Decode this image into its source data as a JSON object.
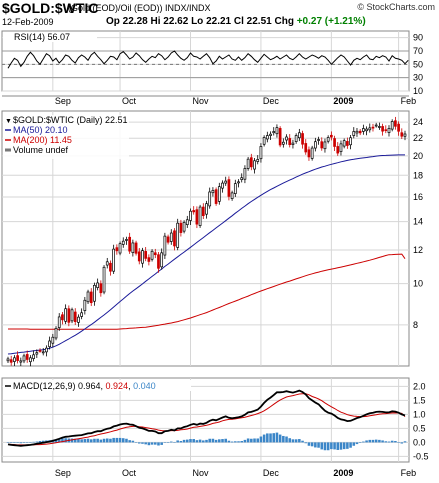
{
  "header": {
    "symbol": "$GOLD:$WTIC",
    "subtitle": "(Gold (EOD)/Oil (EOD))  INDX/INDX",
    "brand": "© StockCharts.com",
    "date": "12-Feb-2009",
    "ohlc": {
      "op_label": "Op",
      "op": "22.28",
      "hi_label": "Hi",
      "hi": "22.62",
      "lo_label": "Lo",
      "lo": "22.21",
      "cl_label": "Cl",
      "cl": "22.51",
      "chg_label": "Chg",
      "chg": "+0.27 (+1.21%)"
    }
  },
  "colors": {
    "price": "#000000",
    "down_candle": "#cc0000",
    "ma50": "#1a1a99",
    "ma200": "#cc0000",
    "macd_line": "#000000",
    "signal_line": "#cc0000",
    "histogram": "#3b86c8",
    "grid": "#d6d6d6",
    "rsi_band": "#9a9a9a",
    "rsi_line": "#000000"
  },
  "chart_data": [
    {
      "type": "line",
      "panel": "rsi",
      "legend": {
        "label": "RSI(14)",
        "value": "56.07"
      },
      "ylim": [
        10,
        100
      ],
      "yticks": [
        90,
        70,
        50,
        30,
        10
      ],
      "bands": [
        70,
        30
      ],
      "midline": 50,
      "series": [
        {
          "name": "RSI(14)",
          "values": [
            44,
            52,
            59,
            56,
            47,
            53,
            62,
            68,
            63,
            55,
            50,
            58,
            66,
            63,
            55,
            59,
            52,
            57,
            64,
            62,
            56,
            52,
            60,
            64,
            61,
            56,
            64,
            68,
            62,
            57,
            51,
            56,
            62,
            61,
            57,
            66,
            69,
            64,
            58,
            61,
            67,
            63,
            57,
            53,
            58,
            62,
            60,
            66,
            63,
            57,
            61,
            67,
            70,
            64,
            59,
            56,
            60,
            67,
            62,
            61,
            58,
            62,
            66,
            60,
            51,
            55,
            62,
            58,
            61,
            64,
            58,
            56,
            61,
            56,
            60,
            66,
            62,
            57,
            53,
            59,
            65,
            61,
            57,
            59,
            62,
            58,
            61,
            64,
            59,
            57,
            61,
            66,
            61,
            58,
            61,
            64,
            62,
            59,
            63,
            61,
            56,
            50,
            55,
            60,
            64,
            61,
            55,
            49,
            56,
            59,
            57,
            61,
            64,
            58,
            57,
            62,
            60,
            63,
            61,
            55,
            63,
            59,
            58,
            56,
            51,
            56
          ]
        }
      ]
    },
    {
      "type": "candlestick",
      "panel": "price",
      "legend": [
        {
          "label": "$GOLD:$WTIC (Daily)",
          "value": "22.51"
        },
        {
          "label": "MA(50)",
          "value": "20.10"
        },
        {
          "label": "MA(200)",
          "value": "11.45"
        },
        {
          "label": "Volume undef",
          "value": ""
        }
      ],
      "scale": "log",
      "ylim": [
        6.4,
        25.5
      ],
      "yticks": [
        24,
        22,
        20,
        18,
        16,
        14,
        12,
        10,
        8
      ],
      "x_labels": [
        "Sep",
        "Oct",
        "Nov",
        "Dec",
        "2009",
        "Feb"
      ],
      "x_label_index": [
        14,
        35,
        57,
        79,
        101,
        122
      ],
      "close": [
        6.65,
        6.53,
        6.69,
        6.59,
        6.58,
        6.76,
        6.63,
        6.69,
        6.8,
        6.88,
        6.96,
        6.91,
        7.05,
        7.33,
        7.48,
        7.85,
        8.35,
        8.22,
        8.73,
        8.11,
        8.68,
        8.14,
        8.34,
        8.54,
        9.14,
        9.56,
        9.02,
        9.91,
        10.04,
        9.52,
        10.93,
        11.26,
        10.7,
        12.06,
        11.95,
        12.42,
        12.59,
        12.71,
        11.93,
        12.47,
        11.79,
        11.31,
        11.96,
        11.47,
        11.28,
        11.92,
        11.7,
        10.87,
        11.82,
        12.94,
        12.52,
        13.16,
        12.27,
        13.88,
        13.19,
        13.94,
        14.14,
        14.81,
        14.76,
        13.81,
        15.15,
        14.46,
        15.43,
        16.44,
        16.58,
        15.44,
        16.92,
        17.25,
        17.44,
        16.05,
        16.36,
        17.2,
        17.37,
        17.76,
        18.67,
        19.64,
        18.84,
        19.47,
        19.61,
        21.04,
        22.09,
        22.32,
        22.49,
        22.82,
        23.3,
        21.21,
        21.53,
        22.15,
        21.25,
        21.43,
        22.33,
        22.66,
        21.3,
        20.42,
        19.88,
        20.86,
        21.59,
        21.85,
        20.87,
        21.56,
        22.09,
        22.14,
        21.04,
        20.3,
        21.34,
        21.71,
        21.15,
        22.06,
        22.82,
        22.85,
        22.65,
        23.19,
        23.12,
        23.27,
        23.3,
        23.63,
        23.45,
        22.86,
        22.96,
        23.21,
        24.09,
        23.47,
        22.85,
        22.24,
        22.51
      ],
      "series": [
        {
          "name": "MA(50)",
          "values": [
            6.83,
            6.84,
            6.86,
            6.87,
            6.89,
            6.9,
            6.92,
            6.93,
            6.95,
            6.96,
            6.98,
            6.99,
            7.01,
            7.05,
            7.09,
            7.14,
            7.2,
            7.27,
            7.34,
            7.41,
            7.49,
            7.56,
            7.64,
            7.73,
            7.82,
            7.92,
            8.01,
            8.11,
            8.22,
            8.33,
            8.44,
            8.56,
            8.68,
            8.81,
            8.94,
            9.08,
            9.21,
            9.35,
            9.48,
            9.61,
            9.73,
            9.86,
            9.99,
            10.13,
            10.26,
            10.4,
            10.54,
            10.69,
            10.83,
            10.98,
            11.12,
            11.27,
            11.42,
            11.57,
            11.72,
            11.87,
            12.02,
            12.18,
            12.34,
            12.51,
            12.67,
            12.84,
            13.01,
            13.18,
            13.35,
            13.53,
            13.71,
            13.89,
            14.07,
            14.26,
            14.45,
            14.65,
            14.84,
            15.04,
            15.23,
            15.43,
            15.61,
            15.79,
            15.97,
            16.15,
            16.32,
            16.49,
            16.65,
            16.8,
            16.95,
            17.1,
            17.25,
            17.39,
            17.53,
            17.67,
            17.82,
            17.96,
            18.1,
            18.23,
            18.35,
            18.48,
            18.6,
            18.71,
            18.82,
            18.91,
            19.01,
            19.1,
            19.18,
            19.27,
            19.36,
            19.44,
            19.51,
            19.58,
            19.63,
            19.68,
            19.73,
            19.78,
            19.82,
            19.87,
            19.92,
            19.97,
            20.01,
            20.03,
            20.05,
            20.07,
            20.08,
            20.09,
            20.1,
            20.1,
            20.1
          ]
        },
        {
          "name": "MA(200)",
          "values": [
            7.82,
            7.82,
            7.82,
            7.82,
            7.82,
            7.82,
            7.82,
            7.81,
            7.81,
            7.81,
            7.81,
            7.81,
            7.81,
            7.81,
            7.81,
            7.81,
            7.81,
            7.81,
            7.81,
            7.81,
            7.81,
            7.81,
            7.81,
            7.81,
            7.81,
            7.81,
            7.81,
            7.81,
            7.81,
            7.81,
            7.81,
            7.81,
            7.81,
            7.81,
            7.81,
            7.82,
            7.83,
            7.84,
            7.85,
            7.86,
            7.87,
            7.88,
            7.89,
            7.9,
            7.92,
            7.94,
            7.96,
            7.98,
            8.01,
            8.03,
            8.06,
            8.08,
            8.11,
            8.14,
            8.18,
            8.22,
            8.26,
            8.3,
            8.35,
            8.4,
            8.45,
            8.5,
            8.55,
            8.61,
            8.67,
            8.73,
            8.79,
            8.85,
            8.92,
            8.98,
            9.04,
            9.1,
            9.16,
            9.23,
            9.29,
            9.35,
            9.42,
            9.48,
            9.55,
            9.61,
            9.67,
            9.73,
            9.79,
            9.85,
            9.91,
            9.97,
            10.03,
            10.09,
            10.14,
            10.2,
            10.26,
            10.32,
            10.38,
            10.44,
            10.5,
            10.55,
            10.6,
            10.65,
            10.7,
            10.74,
            10.78,
            10.82,
            10.86,
            10.9,
            10.94,
            10.98,
            11.03,
            11.07,
            11.12,
            11.17,
            11.21,
            11.26,
            11.31,
            11.36,
            11.41,
            11.47,
            11.53,
            11.59,
            11.65,
            11.7,
            11.71,
            11.72,
            11.73,
            11.74,
            11.45
          ]
        }
      ]
    },
    {
      "type": "line",
      "panel": "macd",
      "legend": [
        {
          "label": "MACD(12,26,9)",
          "value": "0.964"
        },
        {
          "value": "0.924"
        },
        {
          "value": "0.040"
        }
      ],
      "ylim": [
        -0.7,
        2.3
      ],
      "yticks": [
        2.0,
        1.5,
        1.0,
        0.5,
        0.0,
        -0.5
      ],
      "x_labels": [
        "Sep",
        "Oct",
        "Nov",
        "Dec",
        "2009",
        "Feb"
      ],
      "series": [
        {
          "name": "MACD",
          "values": [
            -0.07,
            -0.09,
            -0.1,
            -0.11,
            -0.12,
            -0.11,
            -0.1,
            -0.09,
            -0.07,
            -0.05,
            -0.03,
            -0.01,
            0.01,
            0.03,
            0.06,
            0.09,
            0.13,
            0.17,
            0.2,
            0.21,
            0.23,
            0.24,
            0.25,
            0.26,
            0.29,
            0.32,
            0.33,
            0.37,
            0.4,
            0.4,
            0.45,
            0.49,
            0.51,
            0.57,
            0.6,
            0.64,
            0.66,
            0.67,
            0.64,
            0.63,
            0.58,
            0.52,
            0.5,
            0.46,
            0.41,
            0.41,
            0.39,
            0.33,
            0.33,
            0.4,
            0.41,
            0.45,
            0.43,
            0.5,
            0.5,
            0.55,
            0.58,
            0.63,
            0.66,
            0.63,
            0.67,
            0.66,
            0.7,
            0.77,
            0.81,
            0.79,
            0.84,
            0.89,
            0.93,
            0.88,
            0.86,
            0.88,
            0.9,
            0.93,
            0.99,
            1.07,
            1.09,
            1.13,
            1.17,
            1.28,
            1.41,
            1.52,
            1.6,
            1.69,
            1.79,
            1.79,
            1.8,
            1.83,
            1.8,
            1.78,
            1.81,
            1.85,
            1.8,
            1.71,
            1.58,
            1.5,
            1.42,
            1.36,
            1.24,
            1.13,
            1.06,
            1.03,
            0.96,
            0.87,
            0.82,
            0.8,
            0.76,
            0.77,
            0.82,
            0.87,
            0.9,
            0.95,
            1.0,
            1.04,
            1.06,
            1.09,
            1.1,
            1.09,
            1.07,
            1.07,
            1.11,
            1.1,
            1.06,
            1.0,
            0.96
          ]
        },
        {
          "name": "Signal",
          "values": [
            -0.07,
            -0.07,
            -0.08,
            -0.09,
            -0.09,
            -0.09,
            -0.09,
            -0.09,
            -0.09,
            -0.08,
            -0.08,
            -0.07,
            -0.06,
            -0.05,
            -0.03,
            -0.01,
            0.01,
            0.03,
            0.05,
            0.07,
            0.09,
            0.11,
            0.13,
            0.15,
            0.17,
            0.19,
            0.22,
            0.24,
            0.27,
            0.3,
            0.32,
            0.35,
            0.38,
            0.41,
            0.44,
            0.48,
            0.51,
            0.54,
            0.56,
            0.57,
            0.57,
            0.56,
            0.55,
            0.53,
            0.51,
            0.49,
            0.47,
            0.44,
            0.42,
            0.41,
            0.41,
            0.42,
            0.42,
            0.43,
            0.45,
            0.46,
            0.48,
            0.51,
            0.54,
            0.55,
            0.57,
            0.59,
            0.61,
            0.64,
            0.68,
            0.7,
            0.73,
            0.77,
            0.8,
            0.82,
            0.83,
            0.84,
            0.86,
            0.88,
            0.9,
            0.93,
            0.96,
            0.99,
            1.03,
            1.07,
            1.13,
            1.2,
            1.28,
            1.36,
            1.44,
            1.51,
            1.57,
            1.62,
            1.65,
            1.67,
            1.7,
            1.73,
            1.74,
            1.74,
            1.7,
            1.64,
            1.6,
            1.55,
            1.49,
            1.41,
            1.34,
            1.27,
            1.21,
            1.14,
            1.08,
            1.04,
            0.99,
            0.96,
            0.94,
            0.93,
            0.92,
            0.92,
            0.93,
            0.95,
            0.97,
            0.99,
            1.01,
            1.02,
            1.03,
            1.04,
            1.05,
            1.05,
            1.05,
            1.04,
            0.92
          ]
        },
        {
          "name": "Histogram",
          "values": [
            0.0,
            -0.02,
            -0.02,
            -0.02,
            -0.03,
            -0.02,
            -0.01,
            0.0,
            0.02,
            0.03,
            0.05,
            0.06,
            0.07,
            0.08,
            0.09,
            0.1,
            0.12,
            0.14,
            0.15,
            0.14,
            0.14,
            0.13,
            0.12,
            0.11,
            0.12,
            0.13,
            0.11,
            0.13,
            0.13,
            0.1,
            0.13,
            0.14,
            0.13,
            0.16,
            0.16,
            0.16,
            0.15,
            0.13,
            0.08,
            0.06,
            0.01,
            -0.04,
            -0.05,
            -0.07,
            -0.1,
            -0.08,
            -0.08,
            -0.11,
            -0.09,
            -0.01,
            0.0,
            0.03,
            0.01,
            0.07,
            0.05,
            0.09,
            0.1,
            0.12,
            0.12,
            0.08,
            0.1,
            0.07,
            0.09,
            0.13,
            0.13,
            0.09,
            0.11,
            0.12,
            0.13,
            0.06,
            0.03,
            0.04,
            0.04,
            0.05,
            0.09,
            0.14,
            0.13,
            0.14,
            0.14,
            0.21,
            0.28,
            0.32,
            0.32,
            0.33,
            0.35,
            0.28,
            0.23,
            0.21,
            0.15,
            0.11,
            0.11,
            0.12,
            0.06,
            -0.03,
            -0.12,
            -0.14,
            -0.18,
            -0.19,
            -0.25,
            -0.28,
            -0.28,
            -0.24,
            -0.25,
            -0.27,
            -0.26,
            -0.24,
            -0.23,
            -0.19,
            -0.12,
            -0.06,
            -0.02,
            0.03,
            0.07,
            0.09,
            0.09,
            0.1,
            0.09,
            0.07,
            0.04,
            0.03,
            0.06,
            0.05,
            0.01,
            -0.04,
            0.04
          ]
        }
      ]
    }
  ]
}
